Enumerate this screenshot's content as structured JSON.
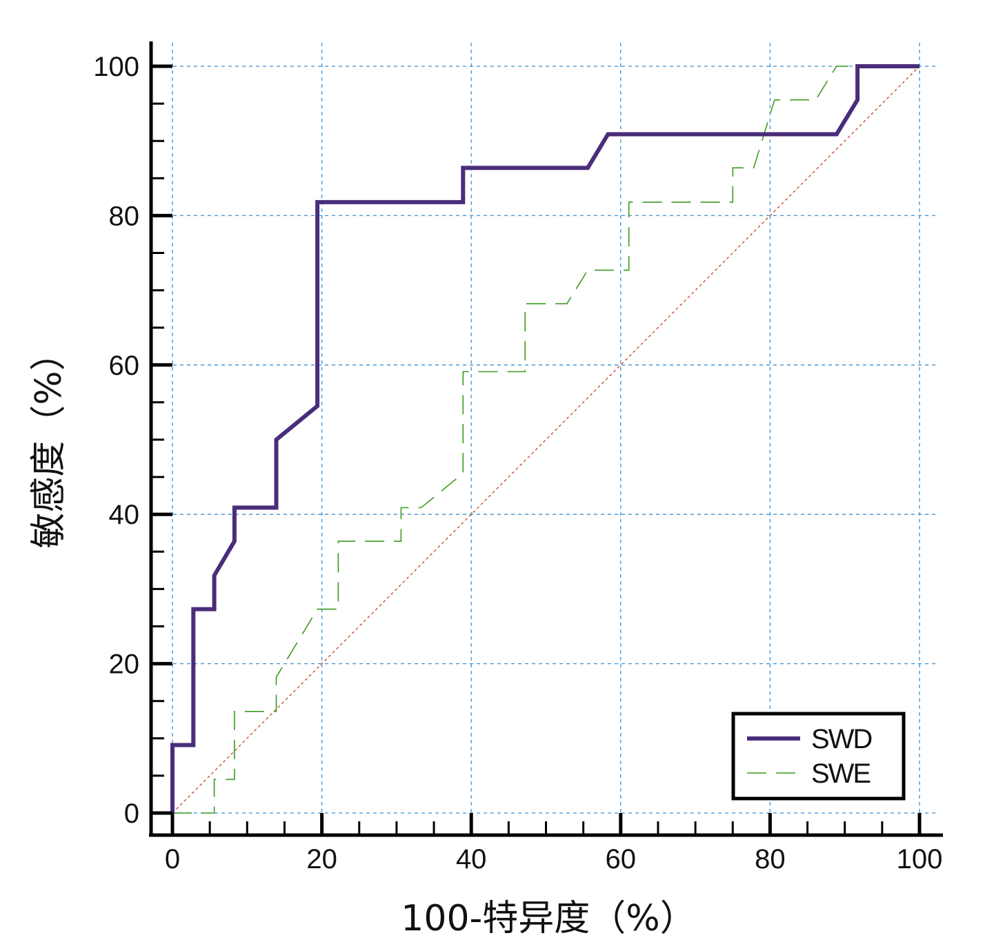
{
  "chart_data": {
    "type": "line",
    "title": "",
    "xlabel": "100-特异度（%）",
    "ylabel": "敏感度（%）",
    "xlim": [
      0,
      100
    ],
    "ylim": [
      0,
      100
    ],
    "x_ticks": [
      "0",
      "20",
      "40",
      "60",
      "80",
      "100"
    ],
    "y_ticks": [
      "0",
      "20",
      "40",
      "60",
      "80",
      "100"
    ],
    "grid": true,
    "legend_position": "bottom-right",
    "colors": {
      "SWD": "#4a2d7a",
      "SWE": "#3a9a1f",
      "reference": "#d0603a",
      "grid": "#3a8fd0",
      "axis": "#000000"
    },
    "series": [
      {
        "name": "SWD",
        "style": "solid",
        "x": [
          0,
          0,
          2.8,
          2.8,
          5.6,
          5.6,
          8.3,
          8.3,
          13.9,
          13.9,
          19.4,
          19.4,
          38.9,
          38.9,
          55.6,
          58.3,
          88.9,
          91.7,
          91.7,
          100
        ],
        "y": [
          0,
          9.1,
          9.1,
          27.3,
          27.3,
          31.8,
          36.4,
          40.9,
          40.9,
          50,
          54.5,
          81.8,
          81.8,
          86.4,
          86.4,
          90.9,
          90.9,
          95.5,
          100,
          100
        ]
      },
      {
        "name": "SWE",
        "style": "dashed",
        "x": [
          0,
          5.6,
          5.6,
          8.3,
          8.3,
          13.9,
          13.9,
          19.4,
          22.2,
          22.2,
          30.6,
          30.6,
          33.3,
          38.9,
          38.9,
          47.2,
          47.2,
          52.8,
          55.6,
          61.1,
          61.1,
          75,
          75,
          77.8,
          80.6,
          86.1,
          88.9,
          91.7,
          100
        ],
        "y": [
          0,
          0,
          4.5,
          4.5,
          13.6,
          13.6,
          18.2,
          27.3,
          27.3,
          36.4,
          36.4,
          40.9,
          40.9,
          45.5,
          59.1,
          59.1,
          68.2,
          68.2,
          72.7,
          72.7,
          81.8,
          81.8,
          86.4,
          86.4,
          95.5,
          95.5,
          100,
          100,
          100
        ]
      },
      {
        "name": "reference",
        "style": "dotted",
        "x": [
          0,
          100
        ],
        "y": [
          0,
          100
        ]
      }
    ],
    "legend": [
      "SWD",
      "SWE"
    ]
  }
}
